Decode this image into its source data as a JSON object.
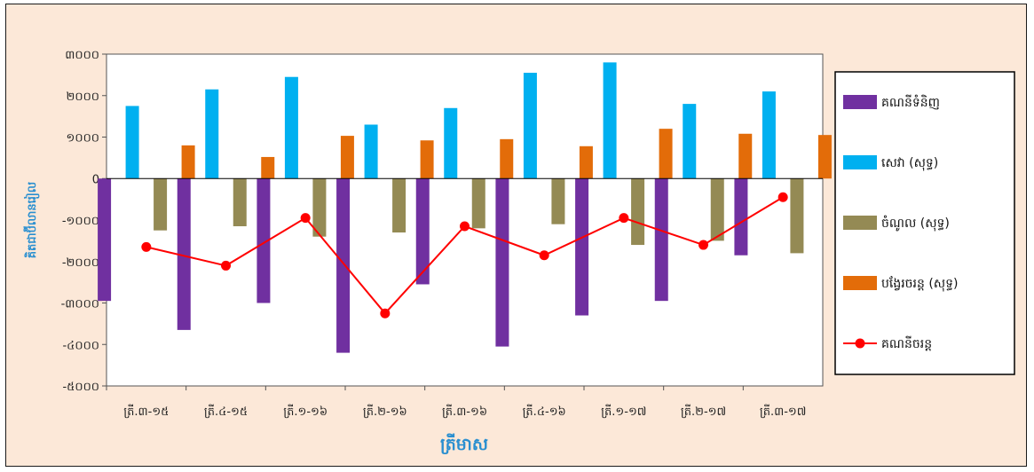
{
  "chart_data": {
    "type": "bar",
    "title": "",
    "xlabel": "ត្រីមាស",
    "ylabel": "គិតជាប៊ីលានរៀល",
    "ylim": [
      -5000,
      3000
    ],
    "yticks": [
      {
        "value": 3000,
        "label": "៣០០០"
      },
      {
        "value": 2000,
        "label": "២០០០"
      },
      {
        "value": 1000,
        "label": "១០០០"
      },
      {
        "value": 0,
        "label": "0"
      },
      {
        "value": -1000,
        "label": "-១០០០"
      },
      {
        "value": -2000,
        "label": "-២០០០"
      },
      {
        "value": -3000,
        "label": "-៣០០០"
      },
      {
        "value": -4000,
        "label": "-៤០០០"
      },
      {
        "value": -5000,
        "label": "-៥០០០"
      }
    ],
    "categories": [
      "ត្រី.៣-១៥",
      "ត្រី.៤-១៥",
      "ត្រី.១-១៦",
      "ត្រី.២-១៦",
      "ត្រី.៣-១៦",
      "ត្រី.៤-១៦",
      "ត្រី.១-១៧",
      "ត្រី.២-១៧",
      "ត្រី.៣-១៧"
    ],
    "series": [
      {
        "name": "គណនីទំនិញ",
        "kind": "bar",
        "color": "#7030a0",
        "values": [
          -2950,
          -3650,
          -3000,
          -4200,
          -2550,
          -4050,
          -3300,
          -2950,
          -1850
        ]
      },
      {
        "name": "សេវា (សុទ្ធ)",
        "kind": "bar",
        "color": "#00b0f0",
        "values": [
          1750,
          2150,
          2450,
          1300,
          1700,
          2550,
          2800,
          1800,
          2100
        ]
      },
      {
        "name": "ចំណូល (សុទ្ធ)",
        "kind": "bar",
        "color": "#948a54",
        "values": [
          -1250,
          -1150,
          -1400,
          -1300,
          -1200,
          -1100,
          -1600,
          -1500,
          -1800
        ]
      },
      {
        "name": "បង្វែរចរន្ត (សុទ្ធ)",
        "kind": "bar",
        "color": "#e36c09",
        "values": [
          800,
          520,
          1030,
          920,
          950,
          780,
          1200,
          1080,
          1050
        ]
      },
      {
        "name": "គណនីចរន្ត",
        "kind": "line",
        "color": "#ff0000",
        "values": [
          -1650,
          -2100,
          -950,
          -3250,
          -1150,
          -1850,
          -950,
          -1600,
          -450
        ]
      }
    ],
    "grid": false,
    "legend_position": "right"
  }
}
